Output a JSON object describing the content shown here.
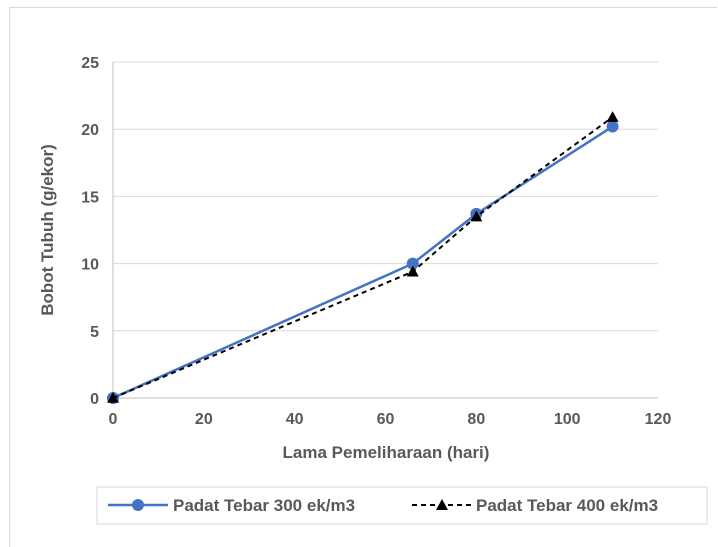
{
  "chart_data": {
    "type": "line",
    "title": "",
    "xlabel": "Lama Pemeliharaan (hari)",
    "ylabel": "Bobot Tubuh (g/ekor)",
    "xlim": [
      0,
      120
    ],
    "ylim": [
      0,
      25
    ],
    "x_ticks": [
      "0",
      "20",
      "40",
      "60",
      "80",
      "100",
      "120"
    ],
    "y_ticks": [
      "0",
      "5",
      "10",
      "15",
      "20",
      "25"
    ],
    "grid": "horizontal",
    "legend_position": "bottom",
    "series": [
      {
        "name": "Padat Tebar 300 ek/m3",
        "color": "#4472c4",
        "marker": "circle",
        "line_style": "solid",
        "x": [
          0,
          66,
          80,
          110
        ],
        "values": [
          0,
          10.0,
          13.7,
          20.2
        ]
      },
      {
        "name": "Padat Tebar 400 ek/m3",
        "color": "#000000",
        "marker": "triangle",
        "line_style": "dashed",
        "x": [
          0,
          66,
          80,
          110
        ],
        "values": [
          0,
          9.4,
          13.5,
          20.9
        ]
      }
    ]
  }
}
